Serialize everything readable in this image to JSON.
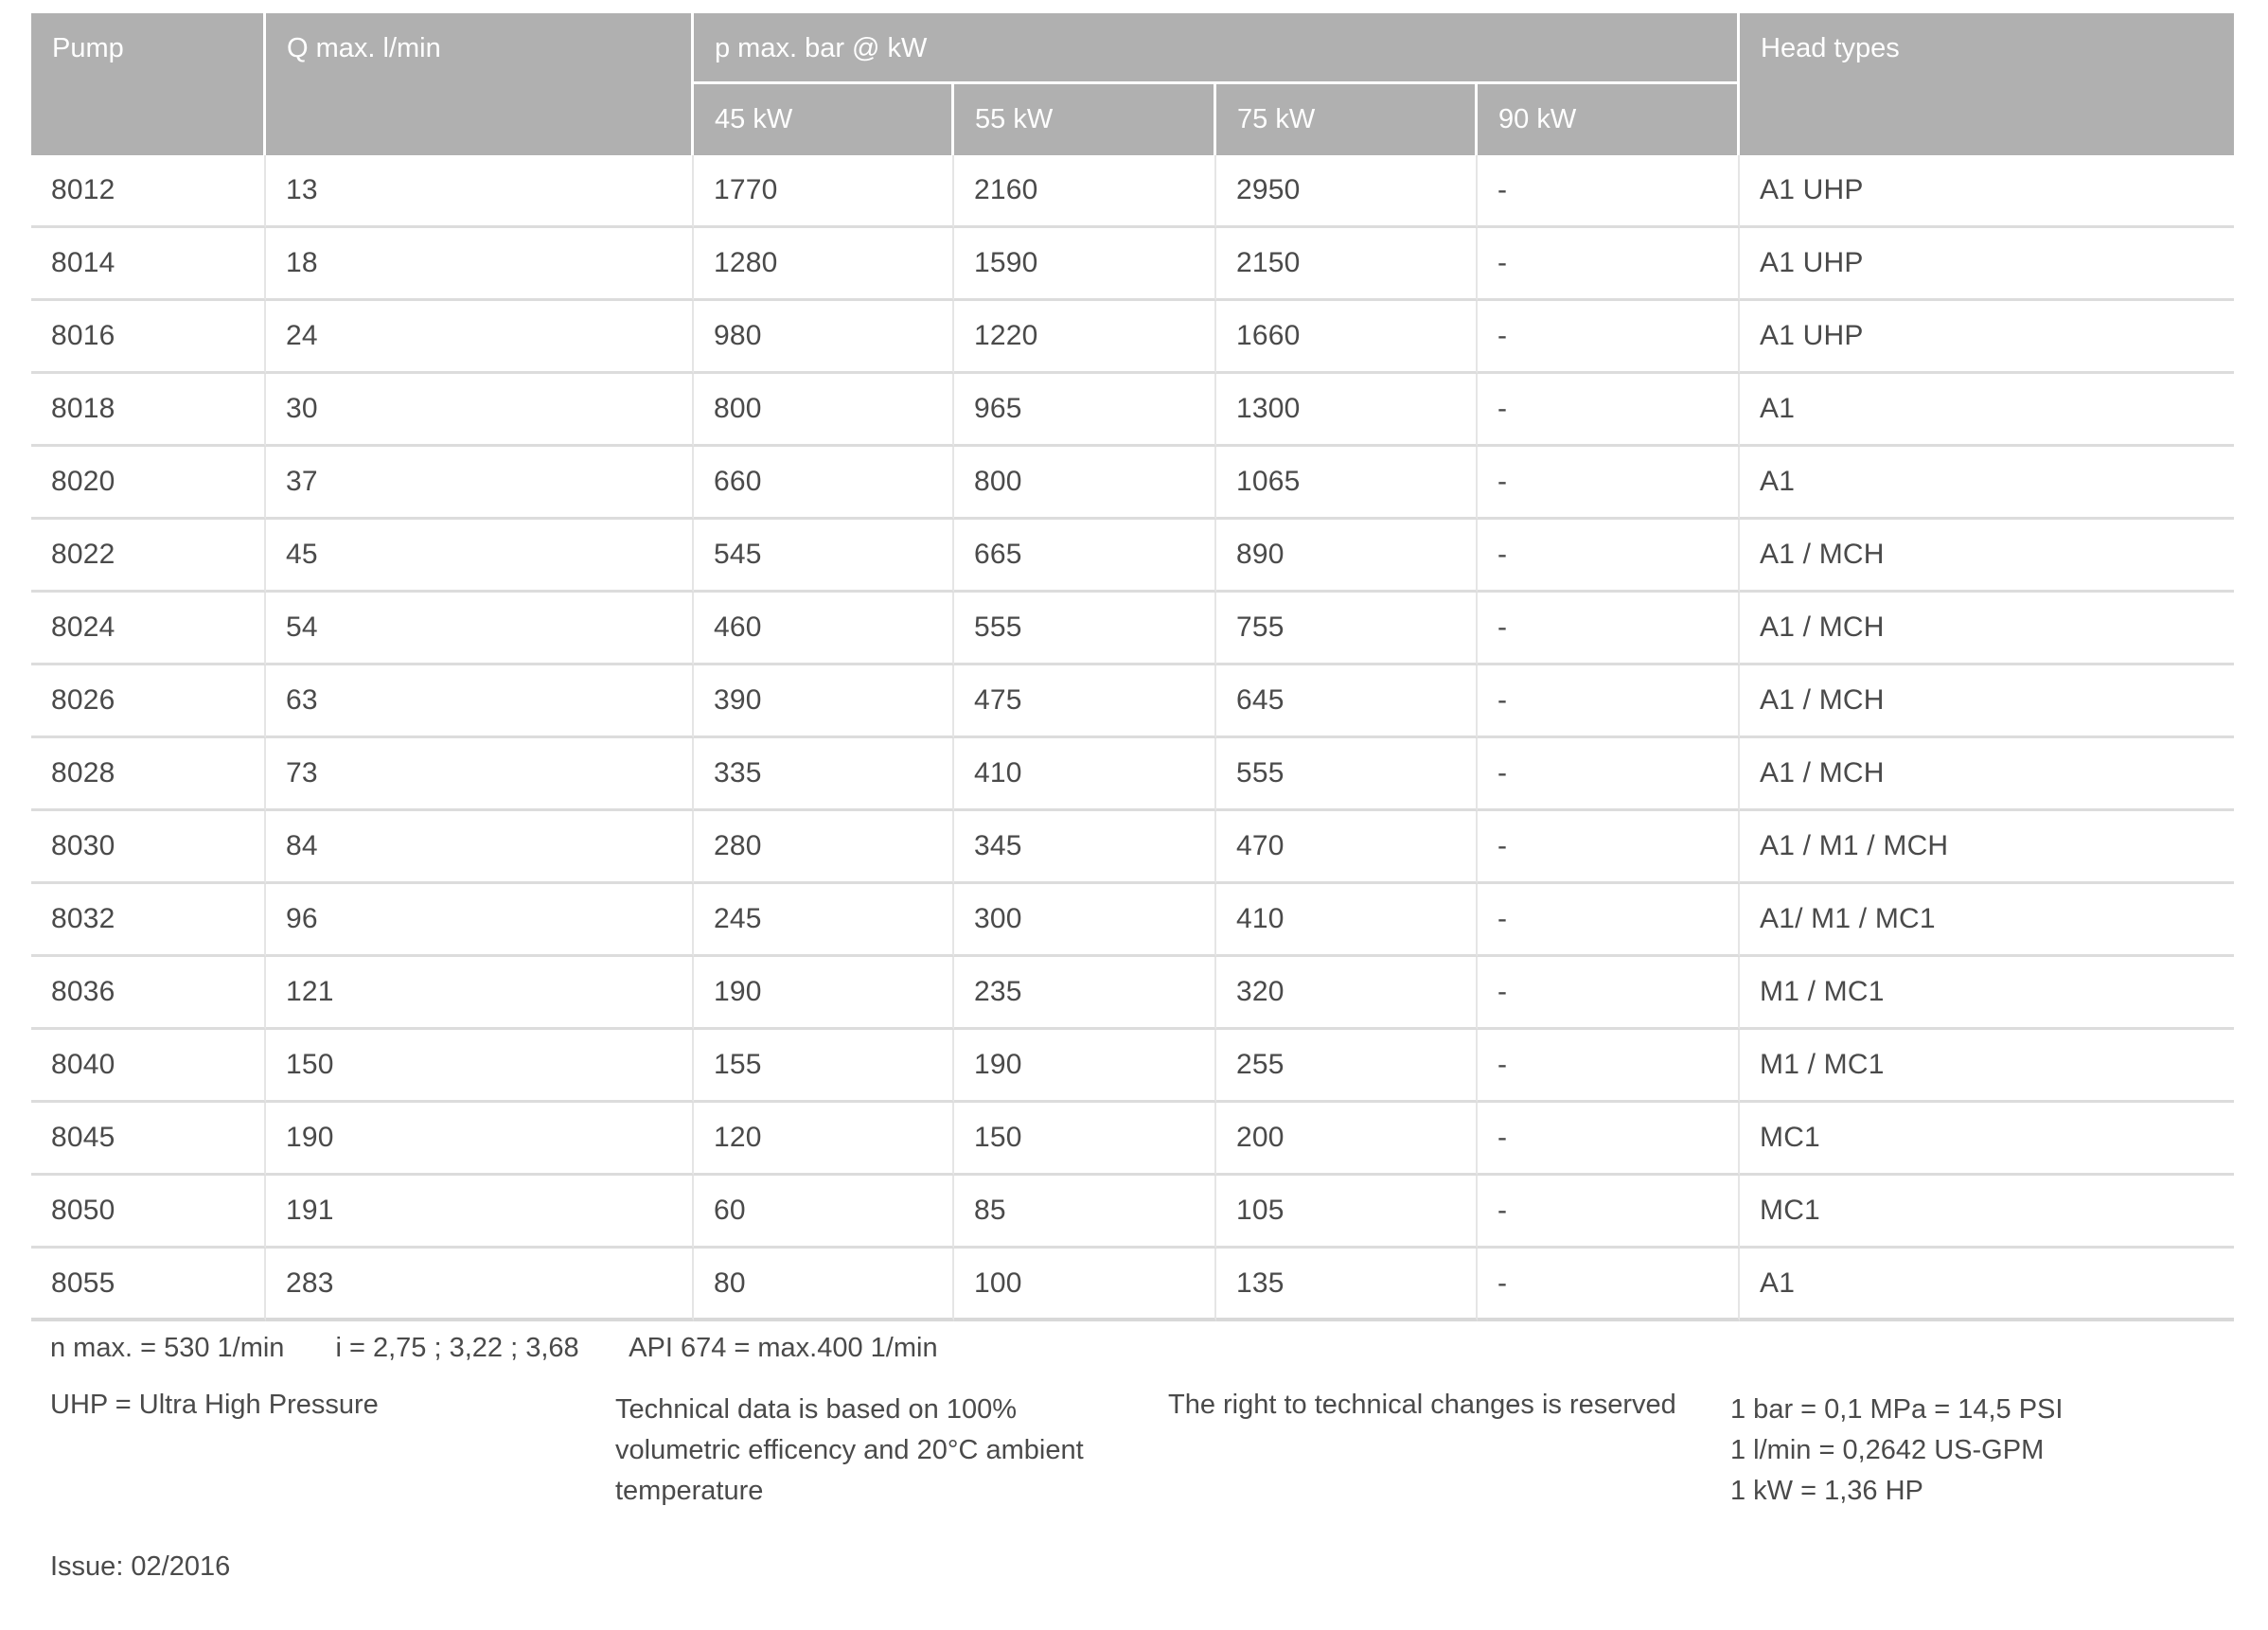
{
  "table": {
    "col_headers": {
      "pump": "Pump",
      "q_max": "Q max. l/min",
      "p_max_group": "p max. bar @ kW",
      "kw": [
        "45 kW",
        "55 kW",
        "75 kW",
        "90 kW"
      ],
      "head_types": "Head types"
    },
    "rows": [
      [
        "8012",
        "13",
        "1770",
        "2160",
        "2950",
        "-",
        "A1 UHP"
      ],
      [
        "8014",
        "18",
        "1280",
        "1590",
        "2150",
        "-",
        "A1 UHP"
      ],
      [
        "8016",
        "24",
        "980",
        "1220",
        "1660",
        "-",
        "A1 UHP"
      ],
      [
        "8018",
        "30",
        "800",
        "965",
        "1300",
        "-",
        "A1"
      ],
      [
        "8020",
        "37",
        "660",
        "800",
        "1065",
        "-",
        "A1"
      ],
      [
        "8022",
        "45",
        "545",
        "665",
        "890",
        "-",
        "A1 / MCH"
      ],
      [
        "8024",
        "54",
        "460",
        "555",
        "755",
        "-",
        "A1 / MCH"
      ],
      [
        "8026",
        "63",
        "390",
        "475",
        "645",
        "-",
        "A1 / MCH"
      ],
      [
        "8028",
        "73",
        "335",
        "410",
        "555",
        "-",
        "A1 / MCH"
      ],
      [
        "8030",
        "84",
        "280",
        "345",
        "470",
        "-",
        "A1 / M1 / MCH"
      ],
      [
        "8032",
        "96",
        "245",
        "300",
        "410",
        "-",
        "A1/ M1 / MC1"
      ],
      [
        "8036",
        "121",
        "190",
        "235",
        "320",
        "-",
        "M1 / MC1"
      ],
      [
        "8040",
        "150",
        "155",
        "190",
        "255",
        "-",
        "M1 / MC1"
      ],
      [
        "8045",
        "190",
        "120",
        "150",
        "200",
        "-",
        "MC1"
      ],
      [
        "8050",
        "191",
        "60",
        "85",
        "105",
        "-",
        "MC1"
      ],
      [
        "8055",
        "283",
        "80",
        "100",
        "135",
        "-",
        "A1"
      ]
    ]
  },
  "footnotes": {
    "spec_line": [
      "n max. = 530 1/min",
      "i = 2,75 ; 3,22 ; 3,68",
      "API 674 = max.400 1/min"
    ],
    "uhp": "UHP = Ultra High Pressure",
    "technical_lines": [
      "Technical data is based on 100%",
      "volumetric efficency and 20°C ambient",
      "temperature"
    ],
    "rights": "The right to technical changes is reserved",
    "conversions": [
      "1 bar = 0,1 MPa = 14,5 PSI",
      "1 l/min = 0,2642 US-GPM",
      "1 kW = 1,36 HP"
    ],
    "issue": "Issue: 02/2016"
  },
  "colors": {
    "header_bg": "#b0b0b0",
    "header_text": "#ffffff",
    "body_text": "#4a4a4a",
    "row_border": "#dcdcdc",
    "col_border": "#e5e5e5"
  }
}
